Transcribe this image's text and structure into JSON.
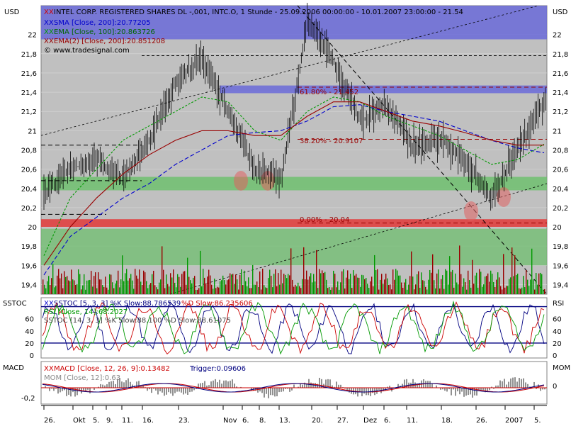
{
  "colors": {
    "background": "#c0c0c0",
    "candle": "#000000",
    "sma": "#0000cc",
    "ema": "#009900",
    "ema2": "#990000",
    "fib_band": "#6a6ad8",
    "support_band": "#6fbf6f",
    "zero_band": "#e04040",
    "highlight": "#e06060",
    "volume_up": "#009900",
    "volume_down": "#990000"
  },
  "main": {
    "currency_left": "USD",
    "currency_right": "USD",
    "title_marker": "XX",
    "title": "INTEL CORP. REGISTERED SHARES DL -,001, INTC.O, 1 Stunde - 25.09.2006 00:00:00 - 10.01.2007 23:00:00 - 21.54",
    "legend": [
      {
        "marker": "XX",
        "text": "SMA [Close, 200]:20.77205",
        "color": "#0000cc"
      },
      {
        "marker": "XX",
        "text": "EMA [Close, 100]:20.863726",
        "color": "#009900"
      },
      {
        "marker": "XX",
        "text": "EMA(2) [Close, 200]:20.851208",
        "color": "#990000"
      }
    ],
    "copyright": "© www.tradesignal.com",
    "fib_labels": [
      {
        "text": "61.80% - 21.452",
        "price": 21.452
      },
      {
        "text": "38.20% - 20.9107",
        "price": 20.9107
      },
      {
        "text": "0.00% - 20.04",
        "price": 20.04
      }
    ],
    "y_ticks": [
      "22",
      "21,8",
      "21,6",
      "21,4",
      "21,2",
      "21",
      "20,8",
      "20,6",
      "20,4",
      "20,2",
      "20",
      "19,8",
      "19,6",
      "19,4"
    ]
  },
  "sstoc": {
    "label_left": "SSTOC",
    "label_right": "RSI",
    "legend1_marker": "XX",
    "legend1_k": "SSTOC [5, 3, 3] %K Slow:88.786539",
    "legend1_d": "%D Slow:86.235606",
    "legend2": "RSI [Close, 14]:68.2027",
    "legend3": "SSTOC [14, 3, 3] %K Slow:88.100 %D Slow:88.61075",
    "y_ticks": [
      "60",
      "40",
      "20",
      "0"
    ],
    "y_ticks_right": [
      "60",
      "40",
      "20",
      "0"
    ]
  },
  "macd": {
    "label_left": "MACD",
    "label_right": "MOM",
    "legend_marker": "XX",
    "legend": "MACD [Close, 12, 26, 9]:0.13482",
    "trigger": "Trigger:0.09606",
    "legend2": "MOM [Close, 12]:0.63",
    "y_ticks": [
      "-0,2"
    ],
    "y_ticks_right": [
      "0"
    ]
  },
  "x_axis": {
    "labels": [
      "26.",
      "Okt",
      "5.",
      "9.",
      "11.",
      "16.",
      "23.",
      "Nov",
      "6.",
      "8.",
      "13.",
      "20.",
      "27.",
      "Dez",
      "6.",
      "11.",
      "18.",
      "26.",
      "2007",
      "5."
    ]
  },
  "chart_data": [
    {
      "type": "candlestick",
      "title": "INTEL CORP. REGISTERED SHARES DL -,001, INTC.O, 1 Stunde - 25.09.2006 00:00:00 - 10.01.2007 23:00:00 - 21.54",
      "ylabel": "USD",
      "ylim": [
        19.3,
        22.3
      ],
      "x": [
        "26.",
        "Okt",
        "5.",
        "9.",
        "11.",
        "16.",
        "23.",
        "Nov",
        "6.",
        "8.",
        "13.",
        "20.",
        "27.",
        "Dez",
        "6.",
        "11.",
        "18.",
        "26.",
        "2007",
        "5."
      ],
      "close": [
        20.35,
        20.6,
        20.7,
        20.5,
        20.9,
        21.5,
        21.75,
        21.2,
        20.6,
        20.5,
        22.15,
        21.7,
        21.1,
        21.25,
        20.85,
        20.9,
        20.65,
        20.3,
        20.85,
        21.3
      ],
      "series": [
        {
          "name": "SMA [Close, 200]",
          "last": 20.77205,
          "values": [
            19.5,
            19.9,
            20.1,
            20.3,
            20.45,
            20.65,
            20.8,
            20.95,
            20.98,
            21.0,
            21.1,
            21.25,
            21.27,
            21.2,
            21.15,
            21.1,
            21.0,
            20.9,
            20.82,
            20.77
          ]
        },
        {
          "name": "EMA [Close, 100]",
          "last": 20.863726,
          "values": [
            19.7,
            20.3,
            20.6,
            20.9,
            21.05,
            21.2,
            21.35,
            21.3,
            21.0,
            20.9,
            21.2,
            21.35,
            21.3,
            21.15,
            21.05,
            20.95,
            20.8,
            20.65,
            20.7,
            20.86
          ]
        },
        {
          "name": "EMA(2) [Close, 200]",
          "last": 20.851208,
          "values": [
            19.6,
            20.0,
            20.3,
            20.55,
            20.75,
            20.9,
            21.0,
            21.0,
            20.95,
            20.95,
            21.15,
            21.3,
            21.3,
            21.2,
            21.1,
            21.05,
            20.98,
            20.9,
            20.85,
            20.85
          ]
        }
      ],
      "fibonacci": [
        {
          "label": "61.80% - 21.452",
          "value": 21.452
        },
        {
          "label": "38.20% - 20.9107",
          "value": 20.9107
        },
        {
          "label": "0.00% - 20.04",
          "value": 20.04
        }
      ],
      "grid": true
    },
    {
      "type": "line",
      "title": "SSTOC",
      "ylim": [
        0,
        90
      ],
      "series": [
        {
          "name": "SSTOC [5, 3, 3] %K Slow",
          "last": 88.786539
        },
        {
          "name": "%D Slow",
          "last": 86.235606
        },
        {
          "name": "RSI [Close, 14]",
          "last": 68.2027
        }
      ],
      "levels": [
        20,
        80
      ]
    },
    {
      "type": "line",
      "title": "MACD",
      "series": [
        {
          "name": "MACD [Close, 12, 26, 9]",
          "last": 0.13482
        },
        {
          "name": "Trigger",
          "last": 0.09606
        },
        {
          "name": "MOM [Close, 12]",
          "last": 0.63
        }
      ]
    }
  ]
}
